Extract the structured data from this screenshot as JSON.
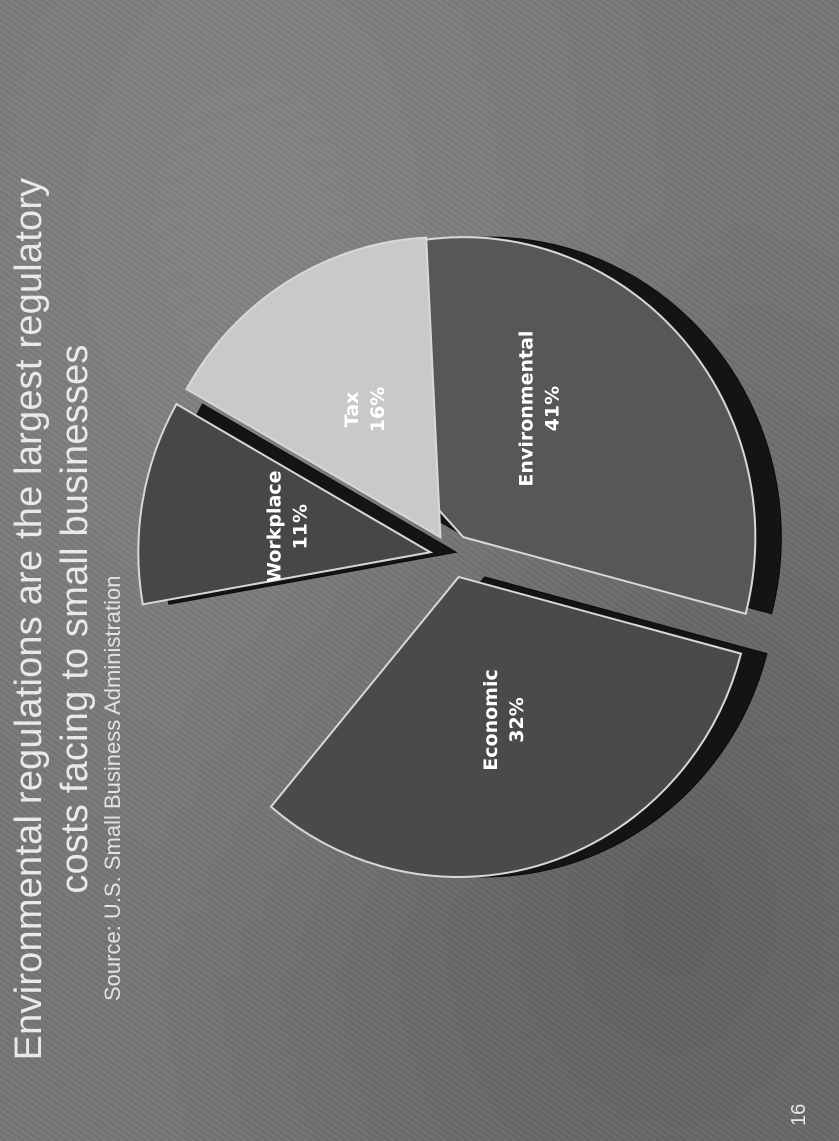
{
  "slide": {
    "title_line1": "Environmental regulations are the largest regulatory",
    "title_line2": "costs facing  to small businesses",
    "source": "Source:  U.S. Small Business Administration",
    "page_number": "16"
  },
  "chart_data": {
    "type": "pie",
    "title": "",
    "slices": [
      {
        "label": "Economic",
        "value": 32,
        "value_label": "32%",
        "color": "#4a4a4a"
      },
      {
        "label": "Environmental",
        "value": 41,
        "value_label": "41%",
        "color": "#575757"
      },
      {
        "label": "Tax",
        "value": 16,
        "value_label": "16%",
        "color": "#c9c9c9"
      },
      {
        "label": "Workplace",
        "value": 11,
        "value_label": "11%",
        "color": "#474747"
      }
    ],
    "style": "3d-exploded"
  }
}
